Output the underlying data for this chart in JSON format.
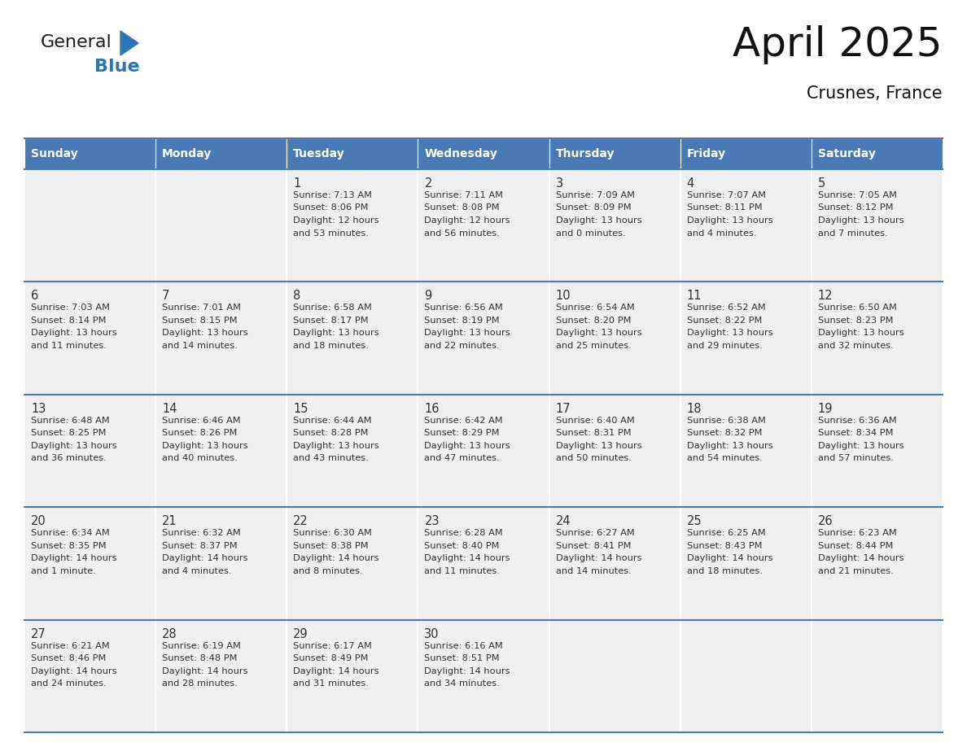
{
  "title": "April 2025",
  "subtitle": "Crusnes, France",
  "header_bg": "#4a7ab5",
  "header_text_color": "#ffffff",
  "cell_bg": "#efefef",
  "text_color": "#333333",
  "line_color": "#4a7ab5",
  "day_names": [
    "Sunday",
    "Monday",
    "Tuesday",
    "Wednesday",
    "Thursday",
    "Friday",
    "Saturday"
  ],
  "logo_general_color": "#1a1a1a",
  "logo_blue_color": "#2e75b6",
  "triangle_color": "#2e75b6",
  "calendar_data": [
    [
      {
        "day": "",
        "lines": []
      },
      {
        "day": "",
        "lines": []
      },
      {
        "day": "1",
        "lines": [
          "Sunrise: 7:13 AM",
          "Sunset: 8:06 PM",
          "Daylight: 12 hours",
          "and 53 minutes."
        ]
      },
      {
        "day": "2",
        "lines": [
          "Sunrise: 7:11 AM",
          "Sunset: 8:08 PM",
          "Daylight: 12 hours",
          "and 56 minutes."
        ]
      },
      {
        "day": "3",
        "lines": [
          "Sunrise: 7:09 AM",
          "Sunset: 8:09 PM",
          "Daylight: 13 hours",
          "and 0 minutes."
        ]
      },
      {
        "day": "4",
        "lines": [
          "Sunrise: 7:07 AM",
          "Sunset: 8:11 PM",
          "Daylight: 13 hours",
          "and 4 minutes."
        ]
      },
      {
        "day": "5",
        "lines": [
          "Sunrise: 7:05 AM",
          "Sunset: 8:12 PM",
          "Daylight: 13 hours",
          "and 7 minutes."
        ]
      }
    ],
    [
      {
        "day": "6",
        "lines": [
          "Sunrise: 7:03 AM",
          "Sunset: 8:14 PM",
          "Daylight: 13 hours",
          "and 11 minutes."
        ]
      },
      {
        "day": "7",
        "lines": [
          "Sunrise: 7:01 AM",
          "Sunset: 8:15 PM",
          "Daylight: 13 hours",
          "and 14 minutes."
        ]
      },
      {
        "day": "8",
        "lines": [
          "Sunrise: 6:58 AM",
          "Sunset: 8:17 PM",
          "Daylight: 13 hours",
          "and 18 minutes."
        ]
      },
      {
        "day": "9",
        "lines": [
          "Sunrise: 6:56 AM",
          "Sunset: 8:19 PM",
          "Daylight: 13 hours",
          "and 22 minutes."
        ]
      },
      {
        "day": "10",
        "lines": [
          "Sunrise: 6:54 AM",
          "Sunset: 8:20 PM",
          "Daylight: 13 hours",
          "and 25 minutes."
        ]
      },
      {
        "day": "11",
        "lines": [
          "Sunrise: 6:52 AM",
          "Sunset: 8:22 PM",
          "Daylight: 13 hours",
          "and 29 minutes."
        ]
      },
      {
        "day": "12",
        "lines": [
          "Sunrise: 6:50 AM",
          "Sunset: 8:23 PM",
          "Daylight: 13 hours",
          "and 32 minutes."
        ]
      }
    ],
    [
      {
        "day": "13",
        "lines": [
          "Sunrise: 6:48 AM",
          "Sunset: 8:25 PM",
          "Daylight: 13 hours",
          "and 36 minutes."
        ]
      },
      {
        "day": "14",
        "lines": [
          "Sunrise: 6:46 AM",
          "Sunset: 8:26 PM",
          "Daylight: 13 hours",
          "and 40 minutes."
        ]
      },
      {
        "day": "15",
        "lines": [
          "Sunrise: 6:44 AM",
          "Sunset: 8:28 PM",
          "Daylight: 13 hours",
          "and 43 minutes."
        ]
      },
      {
        "day": "16",
        "lines": [
          "Sunrise: 6:42 AM",
          "Sunset: 8:29 PM",
          "Daylight: 13 hours",
          "and 47 minutes."
        ]
      },
      {
        "day": "17",
        "lines": [
          "Sunrise: 6:40 AM",
          "Sunset: 8:31 PM",
          "Daylight: 13 hours",
          "and 50 minutes."
        ]
      },
      {
        "day": "18",
        "lines": [
          "Sunrise: 6:38 AM",
          "Sunset: 8:32 PM",
          "Daylight: 13 hours",
          "and 54 minutes."
        ]
      },
      {
        "day": "19",
        "lines": [
          "Sunrise: 6:36 AM",
          "Sunset: 8:34 PM",
          "Daylight: 13 hours",
          "and 57 minutes."
        ]
      }
    ],
    [
      {
        "day": "20",
        "lines": [
          "Sunrise: 6:34 AM",
          "Sunset: 8:35 PM",
          "Daylight: 14 hours",
          "and 1 minute."
        ]
      },
      {
        "day": "21",
        "lines": [
          "Sunrise: 6:32 AM",
          "Sunset: 8:37 PM",
          "Daylight: 14 hours",
          "and 4 minutes."
        ]
      },
      {
        "day": "22",
        "lines": [
          "Sunrise: 6:30 AM",
          "Sunset: 8:38 PM",
          "Daylight: 14 hours",
          "and 8 minutes."
        ]
      },
      {
        "day": "23",
        "lines": [
          "Sunrise: 6:28 AM",
          "Sunset: 8:40 PM",
          "Daylight: 14 hours",
          "and 11 minutes."
        ]
      },
      {
        "day": "24",
        "lines": [
          "Sunrise: 6:27 AM",
          "Sunset: 8:41 PM",
          "Daylight: 14 hours",
          "and 14 minutes."
        ]
      },
      {
        "day": "25",
        "lines": [
          "Sunrise: 6:25 AM",
          "Sunset: 8:43 PM",
          "Daylight: 14 hours",
          "and 18 minutes."
        ]
      },
      {
        "day": "26",
        "lines": [
          "Sunrise: 6:23 AM",
          "Sunset: 8:44 PM",
          "Daylight: 14 hours",
          "and 21 minutes."
        ]
      }
    ],
    [
      {
        "day": "27",
        "lines": [
          "Sunrise: 6:21 AM",
          "Sunset: 8:46 PM",
          "Daylight: 14 hours",
          "and 24 minutes."
        ]
      },
      {
        "day": "28",
        "lines": [
          "Sunrise: 6:19 AM",
          "Sunset: 8:48 PM",
          "Daylight: 14 hours",
          "and 28 minutes."
        ]
      },
      {
        "day": "29",
        "lines": [
          "Sunrise: 6:17 AM",
          "Sunset: 8:49 PM",
          "Daylight: 14 hours",
          "and 31 minutes."
        ]
      },
      {
        "day": "30",
        "lines": [
          "Sunrise: 6:16 AM",
          "Sunset: 8:51 PM",
          "Daylight: 14 hours",
          "and 34 minutes."
        ]
      },
      {
        "day": "",
        "lines": []
      },
      {
        "day": "",
        "lines": []
      },
      {
        "day": "",
        "lines": []
      }
    ]
  ]
}
